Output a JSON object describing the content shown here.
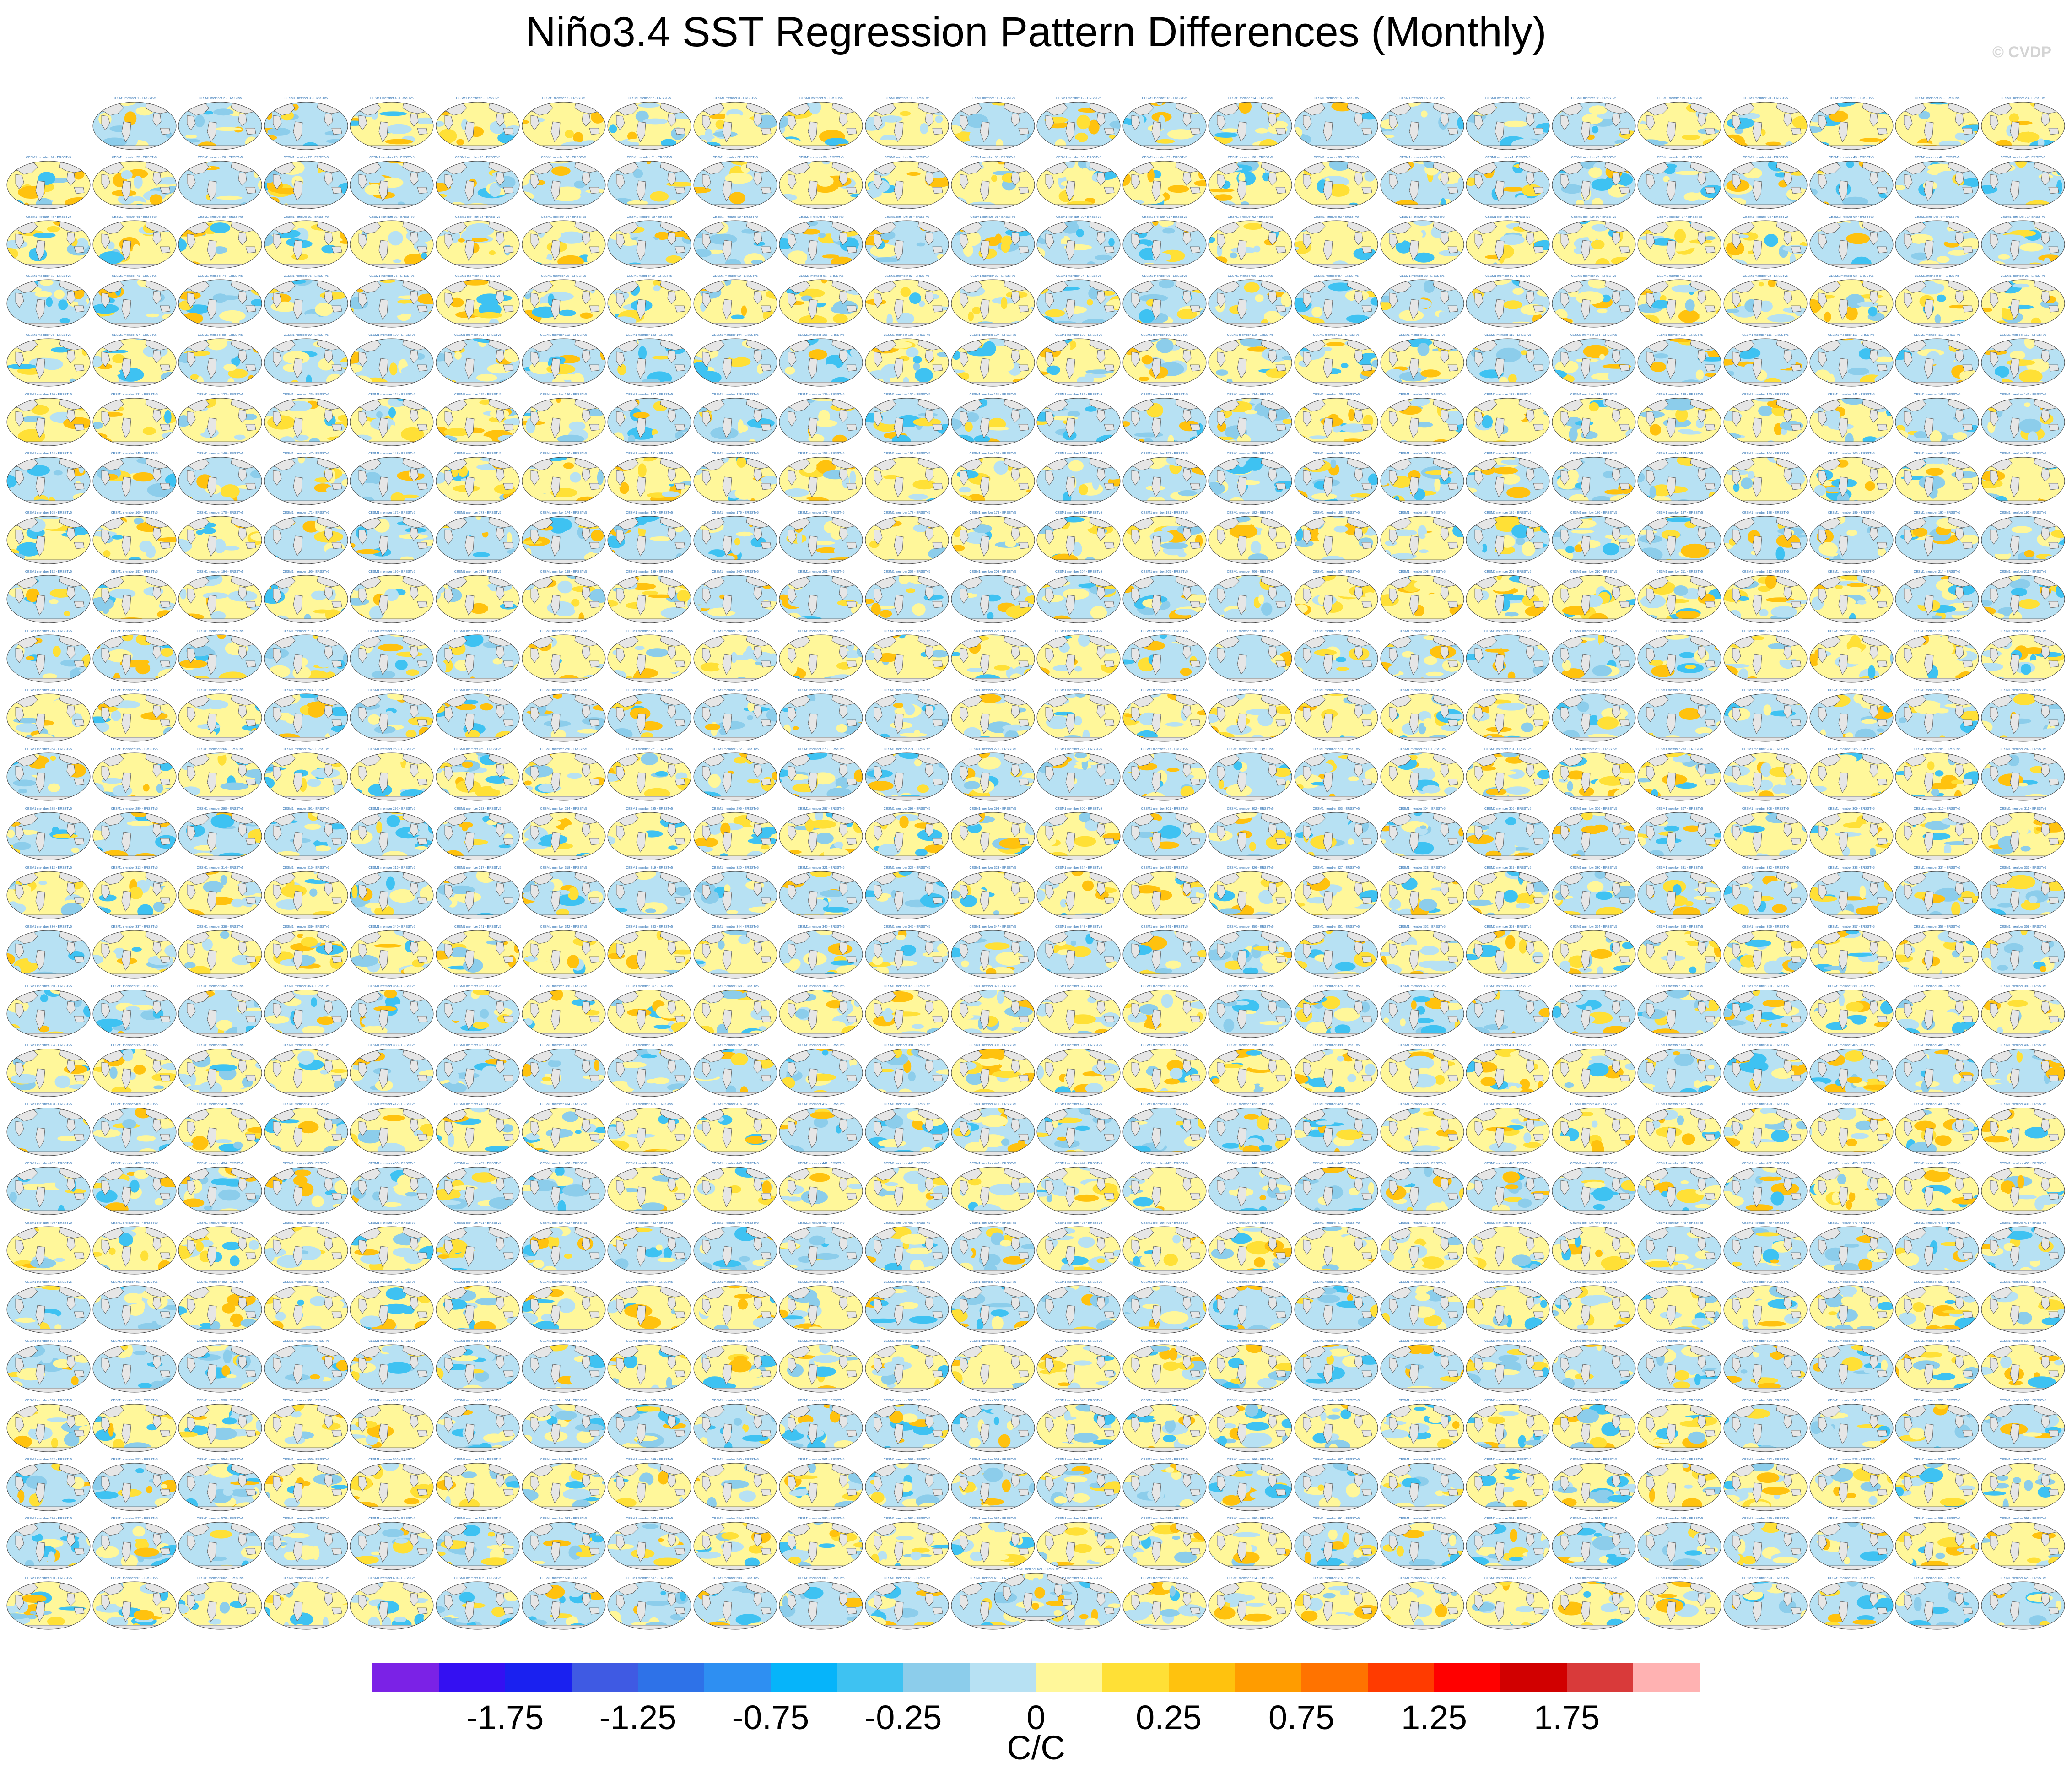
{
  "title": "Niño3.4 SST Regression Pattern Differences (Monthly)",
  "copyright": "© CVDP",
  "chart_data": {
    "type": "heatmap",
    "description_type": "panel grid of global maps",
    "rows": 26,
    "cols": 24,
    "first_row_start_col": 1,
    "extra_panel_count": 1,
    "panel_title_template": "CESM1 member {n} - ERSSTv5",
    "colorbar": {
      "colors": [
        "#7b22e6",
        "#3410f2",
        "#1a21f0",
        "#3f5ae3",
        "#2e72e8",
        "#2e8ff2",
        "#06b4fa",
        "#3ec2f2",
        "#8ccdeb",
        "#b7e1f3",
        "#fff79a",
        "#ffe036",
        "#ffc20e",
        "#ff9c00",
        "#ff7300",
        "#ff3b00",
        "#ff0000",
        "#d10000",
        "#d93a3a",
        "#ffb2b2"
      ],
      "tick_labels": [
        "-1.75",
        "-1.25",
        "-0.75",
        "-0.25",
        "0",
        "0.25",
        "0.75",
        "1.25",
        "1.75"
      ],
      "tick_box_index": [
        1,
        3,
        5,
        7,
        9,
        11,
        13,
        15,
        17
      ],
      "unit": "C/C"
    }
  }
}
